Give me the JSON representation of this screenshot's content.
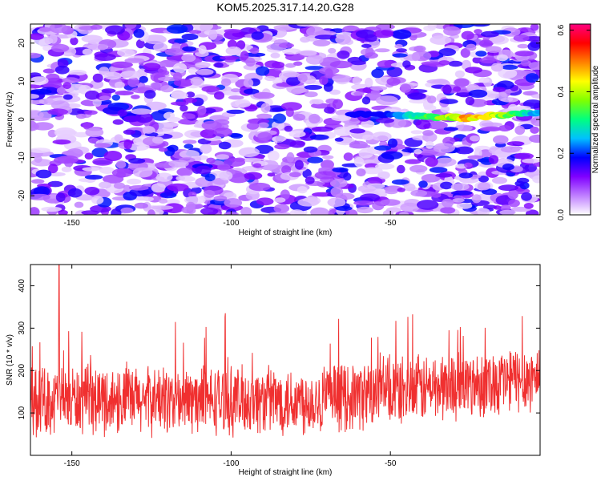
{
  "title": "KOM5.2025.317.14.20.G28",
  "chart_data": [
    {
      "type": "heatmap",
      "xlabel": "Height of straight line (km)",
      "ylabel": "Frequency (Hz)",
      "xlim": [
        -163,
        -3
      ],
      "ylim": [
        -25,
        25
      ],
      "xticks": [
        -150,
        -100,
        -50
      ],
      "yticks": [
        -20,
        -10,
        0,
        10,
        20
      ],
      "xtick_labels": [
        "-150",
        "-100",
        "-50"
      ],
      "ytick_labels": [
        "-20",
        "-10",
        "0",
        "10",
        "20"
      ],
      "colorbar": {
        "label": "Normalized spectral amplitude",
        "range": [
          0,
          0.62
        ],
        "ticks": [
          0,
          0.2,
          0.4,
          0.6
        ],
        "tick_labels": [
          "0.0",
          "0.2",
          "0.4",
          "0.6"
        ],
        "colors": [
          "#ffffff",
          "#c080ff",
          "#8000ff",
          "#0000ff",
          "#00c0ff",
          "#00ff80",
          "#80ff00",
          "#ffff00",
          "#ff8000",
          "#ff0000",
          "#ff0080"
        ]
      },
      "background_level": [
        0.02,
        0.2
      ],
      "signal_track": {
        "x_start": -62,
        "x_end": -3,
        "frequency_start": 1.5,
        "frequency_mid": 0.3,
        "frequency_end": 2,
        "peak_amplitude": 0.55,
        "peak_x": -25
      }
    },
    {
      "type": "line",
      "xlabel": "Height of straight line (km)",
      "ylabel": "SNR (10 * v/v)",
      "xlim": [
        -163,
        -3
      ],
      "ylim": [
        0,
        450
      ],
      "xticks": [
        -150,
        -100,
        -50
      ],
      "yticks": [
        100,
        200,
        300,
        400
      ],
      "xtick_labels": [
        "-150",
        "-100",
        "-50"
      ],
      "ytick_labels": [
        "100",
        "200",
        "300",
        "400"
      ],
      "series": [
        {
          "name": "SNR",
          "color": "#f03030",
          "mean": 130,
          "mean_end": 185,
          "spread": 90,
          "max": 450,
          "x_of_max": -154
        }
      ]
    }
  ]
}
